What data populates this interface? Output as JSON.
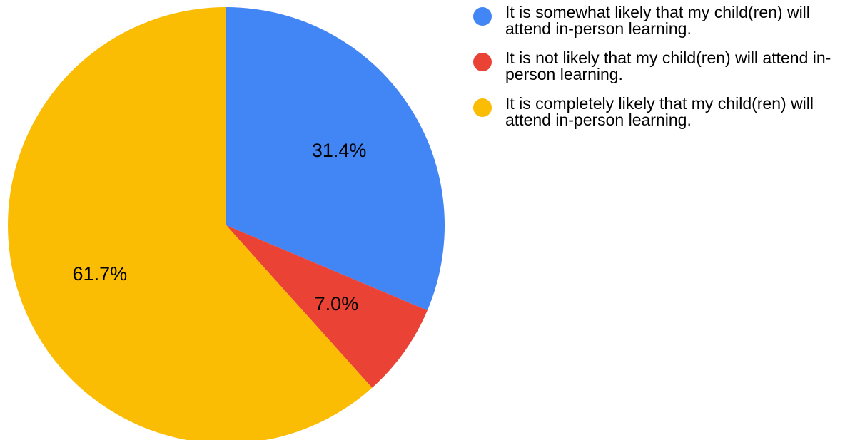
{
  "chart_data": {
    "type": "pie",
    "slices": [
      {
        "label": "It is somewhat likely that my child(ren) will attend in-person learning.",
        "value": 31.4,
        "display": "31.4%",
        "color": "#4285F4"
      },
      {
        "label": "It is not likely that my child(ren) will attend in-person learning.",
        "value": 7.0,
        "display": "7.0%",
        "color": "#EA4335"
      },
      {
        "label": "It is completely likely that my child(ren) will attend in-person learning.",
        "value": 61.7,
        "display": "61.7%",
        "color": "#FBBC04"
      }
    ],
    "start_angle_deg": 0,
    "direction": "clockwise",
    "legend_position": "right"
  }
}
